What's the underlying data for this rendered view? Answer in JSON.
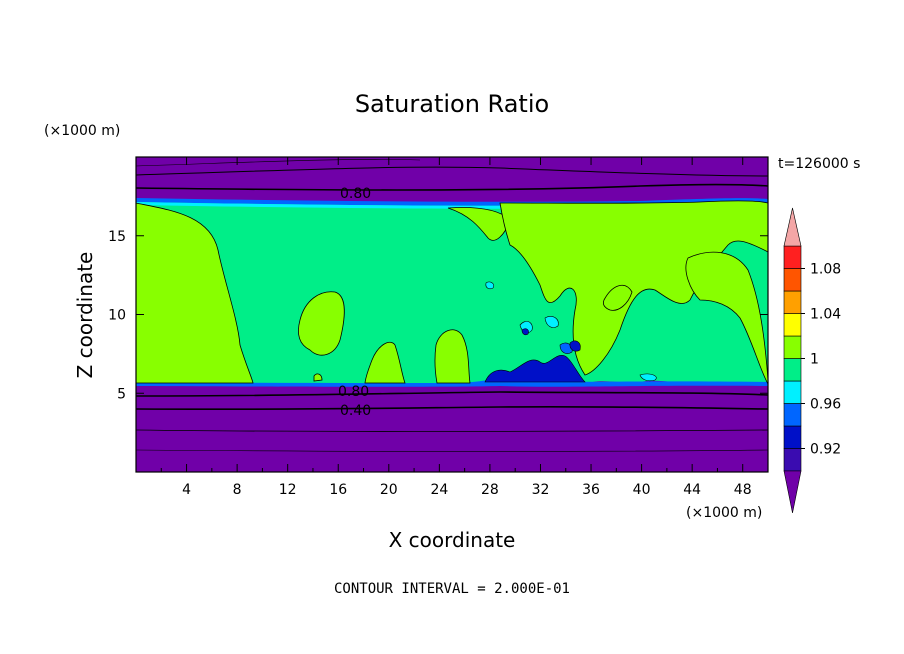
{
  "chart_data": {
    "type": "heatmap",
    "title": "Saturation Ratio",
    "xlabel": "X coordinate",
    "ylabel": "Z coordinate",
    "x_unit": "(×1000 m)",
    "z_unit": "(×1000 m)",
    "time_label": "t=126000 s",
    "footer": "CONTOUR INTERVAL = 2.000E-01",
    "xlim": [
      0,
      50
    ],
    "ylim": [
      0,
      20
    ],
    "x_ticks": [
      4,
      8,
      12,
      16,
      20,
      24,
      28,
      32,
      36,
      40,
      44,
      48
    ],
    "x_tick_labels": [
      "4",
      "8",
      "12",
      "16",
      "20",
      "24",
      "28",
      "32",
      "36",
      "40",
      "44",
      "48"
    ],
    "y_ticks": [
      5,
      10,
      15
    ],
    "y_tick_labels": [
      "5",
      "10",
      "15"
    ],
    "contour_labels": [
      "0.80",
      "0.80",
      "0.40"
    ],
    "colorbar": {
      "labels": [
        "1.08",
        "1.04",
        "1",
        "0.96",
        "0.92"
      ],
      "bins": [
        {
          "lo": null,
          "hi": 0.9,
          "color": "#7000a8"
        },
        {
          "lo": 0.9,
          "hi": 0.92,
          "color": "#3a0cb0"
        },
        {
          "lo": 0.92,
          "hi": 0.94,
          "color": "#0010c8"
        },
        {
          "lo": 0.94,
          "hi": 0.96,
          "color": "#0066ff"
        },
        {
          "lo": 0.96,
          "hi": 0.98,
          "color": "#00f0ff"
        },
        {
          "lo": 0.98,
          "hi": 1.0,
          "color": "#00ee88"
        },
        {
          "lo": 1.0,
          "hi": 1.02,
          "color": "#88ff00"
        },
        {
          "lo": 1.02,
          "hi": 1.04,
          "color": "#ffff00"
        },
        {
          "lo": 1.04,
          "hi": 1.06,
          "color": "#ffa000"
        },
        {
          "lo": 1.06,
          "hi": 1.08,
          "color": "#ff5500"
        },
        {
          "lo": 1.08,
          "hi": 1.1,
          "color": "#ff2020"
        },
        {
          "lo": 1.1,
          "hi": null,
          "color": "#f4a6a6"
        }
      ]
    },
    "regions": {
      "dry_layer_top": {
        "z_bottom": 18.0,
        "color": "#7000a8"
      },
      "dry_layer_bottom": {
        "z_top": 5.6,
        "color": "#7000a8"
      },
      "saturated_layer": {
        "z_bottom": 5.6,
        "z_top": 17.3,
        "color": "#00ee88"
      }
    },
    "supersaturated_patches_color": "#88ff00"
  }
}
